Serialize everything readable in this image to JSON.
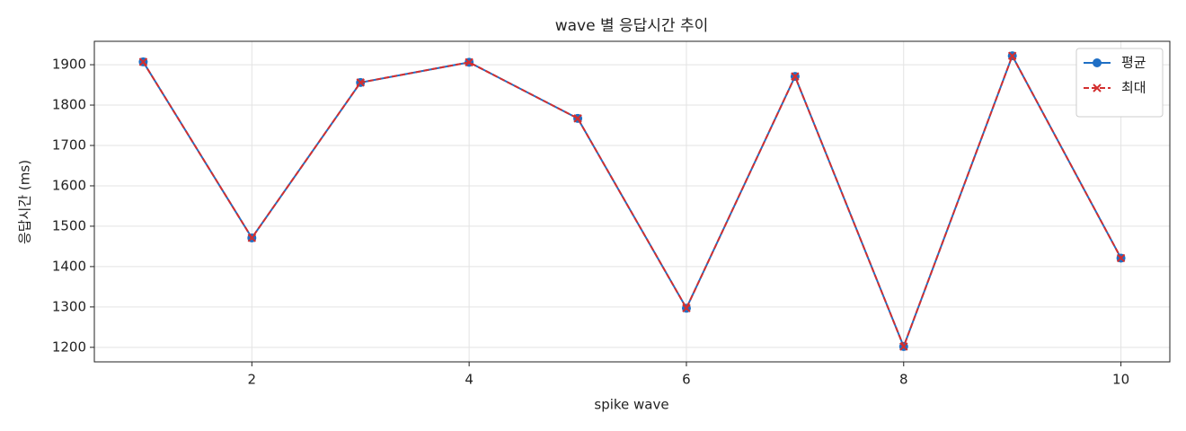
{
  "chart_data": {
    "type": "line",
    "title": "wave 별 응답시간 추이",
    "xlabel": "spike wave",
    "ylabel": "응답시간 (ms)",
    "x": [
      1,
      2,
      3,
      4,
      5,
      6,
      7,
      8,
      9,
      10
    ],
    "series": [
      {
        "name": "평균",
        "color": "#1f6fc5",
        "marker": "o",
        "linestyle": "solid",
        "values": [
          1907,
          1471,
          1856,
          1906,
          1767,
          1297,
          1871,
          1202,
          1922,
          1421
        ]
      },
      {
        "name": "최대",
        "color": "#d32f2f",
        "marker": "x",
        "linestyle": "dashed",
        "values": [
          1907,
          1471,
          1856,
          1906,
          1767,
          1297,
          1871,
          1202,
          1922,
          1421
        ]
      }
    ],
    "xlim": [
      0.55,
      10.45
    ],
    "ylim": [
      1164,
      1958
    ],
    "xticks": [
      2,
      4,
      6,
      8,
      10
    ],
    "yticks": [
      1200,
      1300,
      1400,
      1500,
      1600,
      1700,
      1800,
      1900
    ],
    "grid": true,
    "legend": "upper right"
  }
}
